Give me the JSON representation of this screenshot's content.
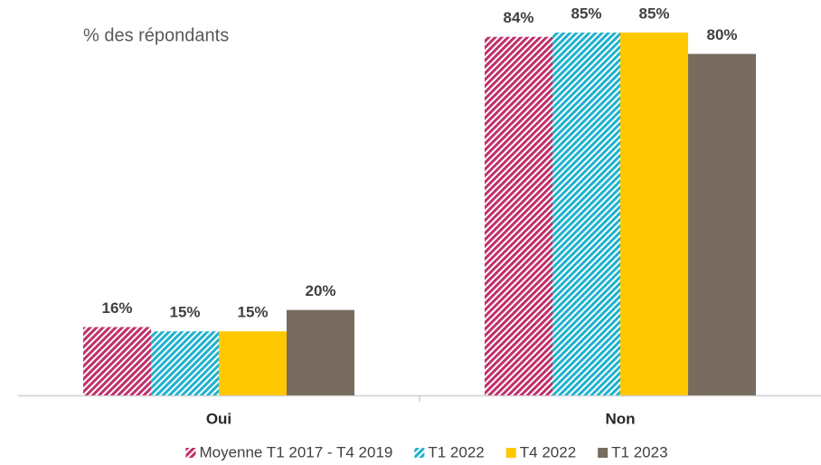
{
  "chart_data": {
    "type": "bar",
    "subtitle": "% des répondants",
    "categories": [
      "Oui",
      "Non"
    ],
    "series": [
      {
        "name": "Moyenne T1 2017 - T4 2019",
        "color": "#c0306a",
        "hatched": true,
        "values": [
          16,
          84
        ],
        "value_labels": [
          "16%",
          "84%"
        ]
      },
      {
        "name": "T1 2022",
        "color": "#1fb1d0",
        "hatched": true,
        "values": [
          15,
          85
        ],
        "value_labels": [
          "15%",
          "85%"
        ]
      },
      {
        "name": "T4 2022",
        "color": "#ffc800",
        "hatched": false,
        "values": [
          15,
          85
        ],
        "value_labels": [
          "15%",
          "85%"
        ]
      },
      {
        "name": "T1 2023",
        "color": "#786c60",
        "hatched": false,
        "values": [
          20,
          80
        ],
        "value_labels": [
          "20%",
          "80%"
        ]
      }
    ],
    "legend": "bottom"
  }
}
